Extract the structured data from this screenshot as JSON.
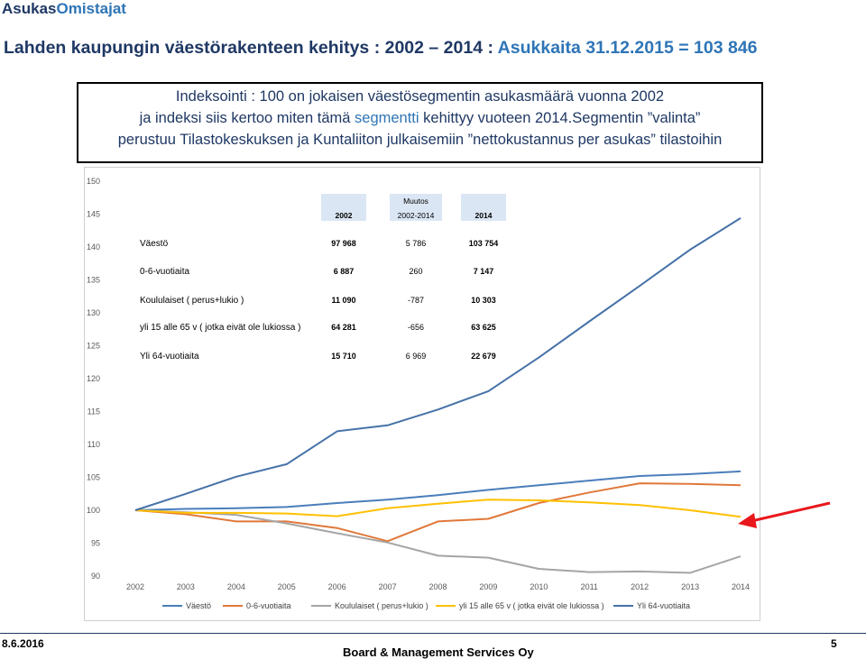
{
  "header": {
    "brand_part1": "Asukas",
    "brand_part2": "Omistajat",
    "headline_main": "Lahden kaupungin väestörakenteen kehitys : 2002 – 2014 : ",
    "headline_highlight": "Asukkaita 31.12.2015 = 103 846"
  },
  "info": {
    "line1": "Indeksointi : 100 on jokaisen väestösegmentin asukasmäärä vuonna 2002",
    "line2_pre": "ja indeksi siis kertoo miten tämä ",
    "line2_hl": "segmentti",
    "line2_post": " kehittyy vuoteen 2014.Segmentin ”valinta”",
    "line3": "perustuu Tilastokeskuksen ja Kuntaliiton julkaisemiin ”nettokustannus per asukas” tilastoihin"
  },
  "table": {
    "col_2002": "2002",
    "col_change_top": "Muutos",
    "col_change": "2002-2014",
    "col_2014": "2014",
    "rows": [
      {
        "label": "Väestö",
        "v2002": "97 968",
        "change": "5 786",
        "v2014": "103 754"
      },
      {
        "label": "0-6-vuotiaita",
        "v2002": "6 887",
        "change": "260",
        "v2014": "7 147"
      },
      {
        "label": "Koululaiset ( perus+lukio )",
        "v2002": "11 090",
        "change": "-787",
        "v2014": "10 303"
      },
      {
        "label": "yli 15 alle 65 v ( jotka eivät ole lukiossa )",
        "v2002": "64 281",
        "change": "-656",
        "v2014": "63 625"
      },
      {
        "label": "Yli 64-vuotiaita",
        "v2002": "15 710",
        "change": "6 969",
        "v2014": "22 679"
      }
    ]
  },
  "chart_data": {
    "type": "line",
    "x": [
      "2002",
      "2003",
      "2004",
      "2005",
      "2006",
      "2007",
      "2008",
      "2009",
      "2010",
      "2011",
      "2012",
      "2013",
      "2014"
    ],
    "yticks": [
      "150",
      "145",
      "140",
      "135",
      "130",
      "125",
      "120",
      "115",
      "110",
      "105",
      "100",
      "95",
      "90"
    ],
    "ylim": [
      90,
      150
    ],
    "grid": false,
    "legend_position": "bottom",
    "series": [
      {
        "name": "Väestö",
        "color": "#4a7ebb",
        "values": [
          100,
          100.2,
          100.3,
          100.5,
          101.1,
          101.6,
          102.3,
          103.1,
          103.8,
          104.5,
          105.2,
          105.5,
          105.9
        ]
      },
      {
        "name": "0-6-vuotiaita",
        "color": "#e0783a",
        "values": [
          100,
          99.4,
          98.3,
          98.3,
          97.3,
          95.3,
          98.3,
          98.7,
          101.1,
          102.7,
          104.1,
          104.0,
          103.8
        ]
      },
      {
        "name": "Koululaiset ( perus+lukio )",
        "color": "#a5a5a5",
        "values": [
          100,
          99.7,
          99.3,
          98.0,
          96.5,
          95.1,
          93.1,
          92.8,
          91.1,
          90.6,
          90.7,
          90.5,
          93.0
        ]
      },
      {
        "name": "yli 15 alle 65 v ( jotka eivät ole lukiossa )",
        "color": "#ffc000",
        "values": [
          100,
          99.6,
          99.6,
          99.5,
          99.1,
          100.3,
          101.0,
          101.6,
          101.5,
          101.2,
          100.8,
          100.0,
          99.0
        ]
      },
      {
        "name": "Yli 64-vuotiaita",
        "color": "#4672a8",
        "values": [
          100,
          102.5,
          105.1,
          107.0,
          112.0,
          112.9,
          115.3,
          118.1,
          123.2,
          128.7,
          134.1,
          139.6,
          144.4
        ]
      }
    ],
    "annotation_color": "#e8181c"
  },
  "footer": {
    "date": "8.6.2016",
    "center": "Board & Management Services Oy",
    "page": "5"
  }
}
